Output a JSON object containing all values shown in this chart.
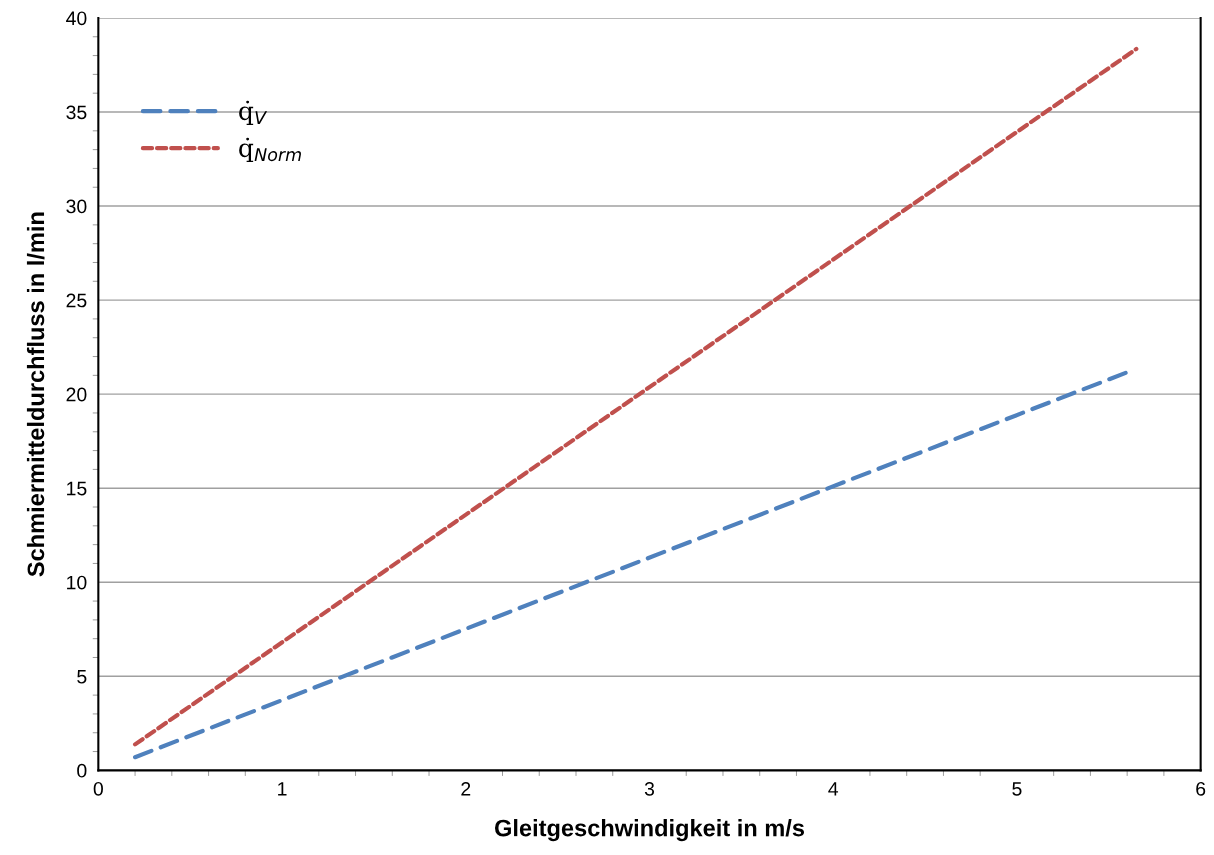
{
  "chart_data": {
    "type": "line",
    "xlabel": "Gleitgeschwindigkeit in m/s",
    "ylabel": "Schmiermitteldurchfluss in l/min",
    "xlim": [
      0,
      6
    ],
    "xticks": [
      0,
      1,
      2,
      3,
      4,
      5,
      6
    ],
    "ylim": [
      0,
      40
    ],
    "yticks": [
      0,
      5,
      10,
      15,
      20,
      25,
      30,
      35,
      40
    ],
    "grid": "y",
    "legend": "top left",
    "marker": "none",
    "series": [
      {
        "name": "q̇$_{V}$",
        "color": "#4f81bd",
        "line_style": "dashed",
        "x": [
          0.2,
          5.61
        ],
        "values": [
          0.7,
          21.2
        ]
      },
      {
        "name": "q̇$_{Norm}$",
        "color": "#c0504d",
        "line_style": "dotted",
        "x": [
          0.2,
          5.65
        ],
        "values": [
          1.38,
          38.35
        ]
      }
    ]
  }
}
